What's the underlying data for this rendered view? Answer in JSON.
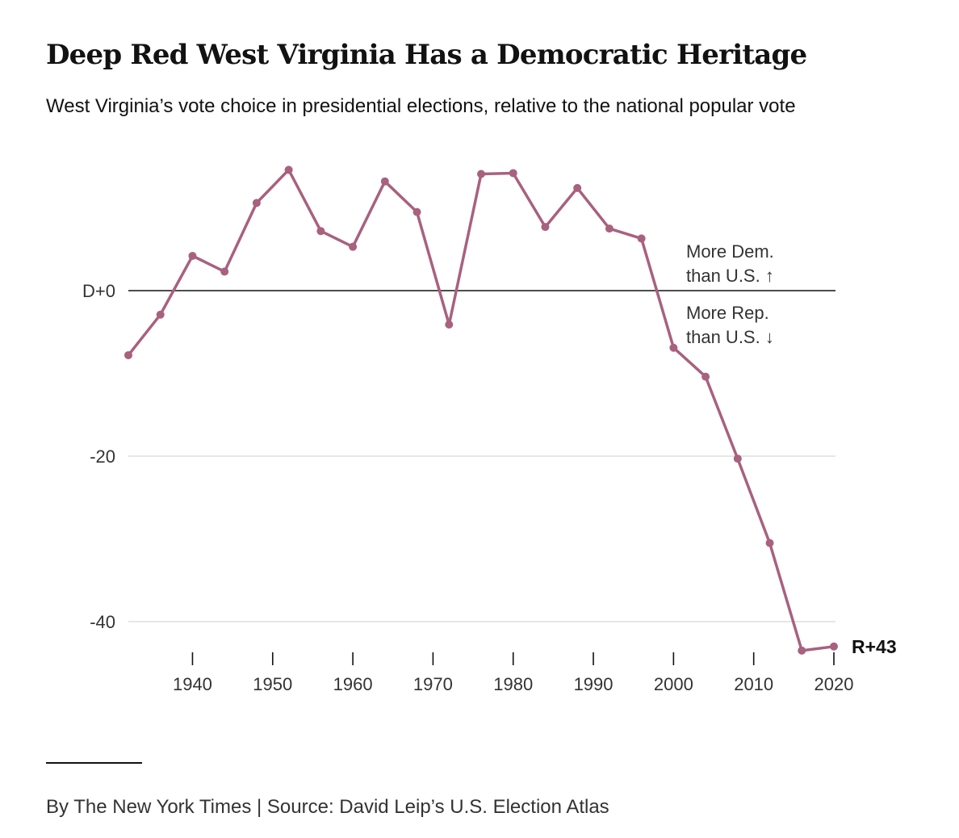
{
  "title": "Deep Red West Virginia Has a Democratic Heritage",
  "subtitle": "West Virginia’s vote choice in presidential elections, relative to the national popular vote",
  "footer": {
    "credit": "By The New York Times | Source: David Leip’s U.S. Election Atlas"
  },
  "colors": {
    "line": "#a8617e",
    "zero_line": "#121212",
    "grid": "#dddddd",
    "text": "#121212",
    "muted": "#333333"
  },
  "chart_data": {
    "type": "line",
    "title": "Deep Red West Virginia Has a Democratic Heritage",
    "xlabel": "",
    "ylabel": "",
    "x": [
      1932,
      1936,
      1940,
      1944,
      1948,
      1952,
      1956,
      1960,
      1964,
      1968,
      1972,
      1976,
      1980,
      1984,
      1988,
      1992,
      1996,
      2000,
      2004,
      2008,
      2012,
      2016,
      2020
    ],
    "values": [
      -7.8,
      -2.9,
      4.2,
      2.3,
      10.6,
      14.6,
      7.2,
      5.3,
      13.2,
      9.5,
      -4.1,
      14.1,
      14.2,
      7.7,
      12.4,
      7.5,
      6.3,
      -6.9,
      -10.4,
      -20.3,
      -30.5,
      -43.5,
      -43.0
    ],
    "xlim": [
      1932,
      2020
    ],
    "ylim": [
      -44,
      16
    ],
    "x_ticks": [
      1940,
      1950,
      1960,
      1970,
      1980,
      1990,
      2000,
      2010,
      2020
    ],
    "x_tick_labels": [
      "1940",
      "1950",
      "1960",
      "1970",
      "1980",
      "1990",
      "2000",
      "2010",
      "2020"
    ],
    "y_ticks": [
      0,
      -20,
      -40
    ],
    "y_tick_labels": [
      "D+0",
      "-20",
      "-40"
    ],
    "grid": true,
    "end_label": "R+43",
    "annotations": {
      "above_zero": [
        "More Dem.",
        "than U.S. ↑"
      ],
      "below_zero": [
        "More Rep.",
        "than U.S. ↓"
      ]
    }
  }
}
